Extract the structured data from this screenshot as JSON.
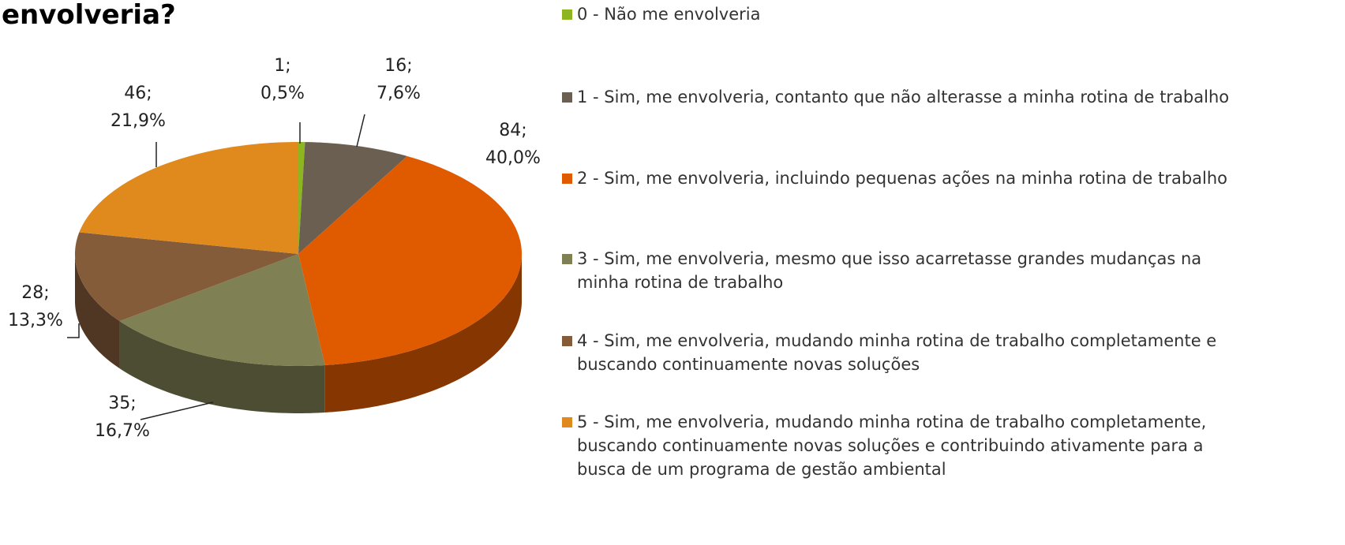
{
  "chart_data": {
    "type": "pie",
    "title": "envolveria?",
    "categories": [
      "0 - Não me envolveria",
      "1 - Sim, me envolveria, contanto que não alterasse a minha rotina de trabalho",
      "2 - Sim, me envolveria, incluindo pequenas ações na minha rotina de trabalho",
      "3 - Sim, me envolveria, mesmo que isso acarretasse grandes mudanças na minha rotina de trabalho",
      "4 - Sim, me envolveria, mudando minha rotina de trabalho completamente e buscando continuamente novas soluções",
      "5 - Sim, me envolveria, mudando minha rotina de trabalho completamente, buscando continuamente novas soluções e contribuindo ativamente para a busca de um programa de gestão ambiental"
    ],
    "values": [
      1,
      16,
      84,
      35,
      28,
      46
    ],
    "value_labels": [
      "1; 0,5%",
      "16; 7,6%",
      "84; 40,0%",
      "35; 16,7%",
      "28; 13,3%",
      "46; 21,9%"
    ],
    "colors": [
      "#8db520",
      "#6b5f52",
      "#e05a00",
      "#7f8054",
      "#855c3a",
      "#e08a1e"
    ],
    "legend": "right"
  }
}
